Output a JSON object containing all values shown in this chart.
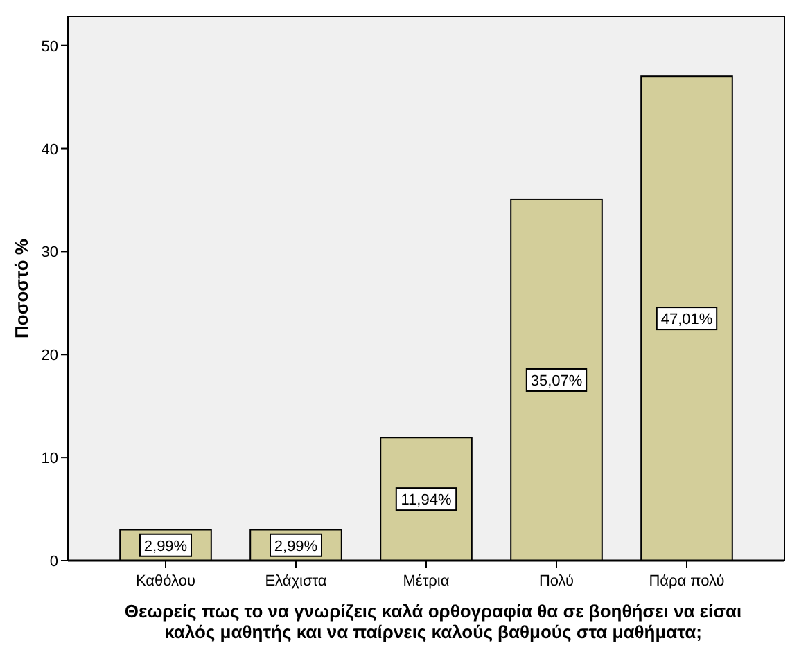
{
  "chart_data": {
    "type": "bar",
    "categories": [
      "Καθόλου",
      "Ελάχιστα",
      "Μέτρια",
      "Πολύ",
      "Πάρα πολύ"
    ],
    "values": [
      2.99,
      2.99,
      11.94,
      35.07,
      47.01
    ],
    "value_labels": [
      "2,99%",
      "2,99%",
      "11,94%",
      "35,07%",
      "47,01%"
    ],
    "color": "#d3ce9a",
    "ylim": [
      0,
      52.8
    ],
    "yticks": [
      0,
      10,
      20,
      30,
      40,
      50
    ],
    "ylabel": "Ποσοστό %",
    "xlabel": "Θεωρείς πως το να γνωρίζεις καλά ορθογραφία θα σε βοηθήσει να είσαι καλός μαθητής και να παίρνεις καλούς βαθμούς στα μαθήματα;",
    "grid": false
  }
}
